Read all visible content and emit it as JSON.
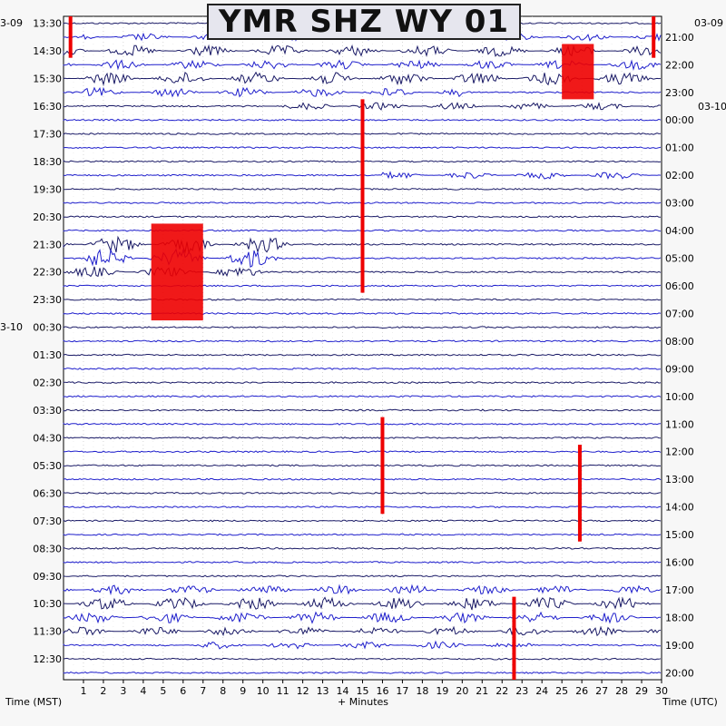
{
  "chart_data": {
    "type": "line",
    "title": "YMR SHZ WY 01",
    "xlabel": "+ Minutes",
    "left_axis_label": "Time (MST)",
    "right_axis_label": "Time (UTC)",
    "xlim": [
      0,
      30
    ],
    "x_ticks": [
      1,
      2,
      3,
      4,
      5,
      6,
      7,
      8,
      9,
      10,
      11,
      12,
      13,
      14,
      15,
      16,
      17,
      18,
      19,
      20,
      21,
      22,
      23,
      24,
      25,
      26,
      27,
      28,
      29,
      30
    ],
    "left_time_labels": [
      "13:30",
      "14:30",
      "15:30",
      "16:30",
      "17:30",
      "18:30",
      "19:30",
      "20:30",
      "21:30",
      "22:30",
      "23:30",
      "00:30",
      "01:30",
      "02:30",
      "03:30",
      "04:30",
      "05:30",
      "06:30",
      "07:30",
      "08:30",
      "09:30",
      "10:30",
      "11:30",
      "12:30"
    ],
    "right_time_labels": [
      "21:00",
      "22:00",
      "23:00",
      "00:00",
      "01:00",
      "02:00",
      "03:00",
      "04:00",
      "05:00",
      "06:00",
      "07:00",
      "08:00",
      "09:00",
      "10:00",
      "11:00",
      "12:00",
      "13:00",
      "14:00",
      "15:00",
      "16:00",
      "17:00",
      "18:00",
      "19:00",
      "20:00"
    ],
    "left_date_labels": [
      {
        "text": "3-09",
        "row": 0
      },
      {
        "text": "3-10",
        "row": 22
      }
    ],
    "right_date_labels": [
      {
        "text": "03-09",
        "row": 0
      },
      {
        "text": "03-10",
        "row": 6
      }
    ],
    "trace_rows": 48,
    "trace_colors": [
      "#1a1a66",
      "#1f1fcc"
    ],
    "clip_color": "#ee0000",
    "grid": "dotted vertical per minute",
    "events": [
      {
        "rows": [
          0,
          3
        ],
        "x": 0.35,
        "amp": "clipped"
      },
      {
        "rows": [
          0,
          3
        ],
        "x": 29.6,
        "amp": "clipped"
      },
      {
        "rows": [
          2,
          6
        ],
        "x": 25.0,
        "x_end": 26.6,
        "amp": "clipped"
      },
      {
        "rows": [
          6,
          20
        ],
        "x": 15.0,
        "amp": "clipped"
      },
      {
        "rows": [
          15,
          22
        ],
        "x": 4.4,
        "x_end": 7.0,
        "amp": "clipped"
      },
      {
        "rows": [
          29,
          36
        ],
        "x": 16.0,
        "amp": "clipped"
      },
      {
        "rows": [
          31,
          38
        ],
        "x": 25.9,
        "amp": "clipped"
      },
      {
        "rows": [
          42,
          48
        ],
        "x": 22.6,
        "amp": "clipped"
      }
    ]
  }
}
